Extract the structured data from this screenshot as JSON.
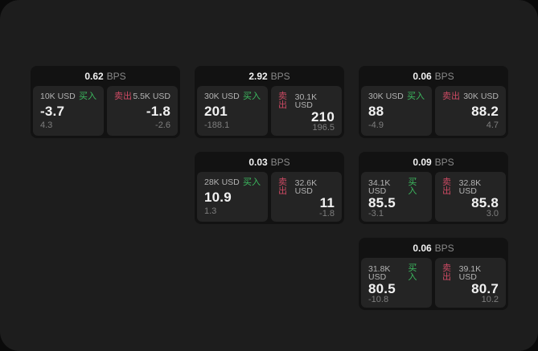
{
  "labels": {
    "bps": "BPS",
    "buy": "买入",
    "sell": "卖出"
  },
  "colors": {
    "backdrop": "#0a0a0a",
    "panel_bg": "#1d1d1d",
    "card_bg": "#121212",
    "tile_bg": "#242424",
    "buy_green": "#3cba5f",
    "sell_red": "#cd4a63"
  },
  "cards": [
    {
      "bps": "0.62",
      "buy": {
        "amount": "10K USD",
        "value": "-3.7",
        "delta": "4.3"
      },
      "sell": {
        "amount": "5.5K USD",
        "value": "-1.8",
        "delta": "-2.6"
      }
    },
    {
      "bps": "2.92",
      "buy": {
        "amount": "30K USD",
        "value": "201",
        "delta": "-188.1"
      },
      "sell": {
        "amount": "30.1K USD",
        "value": "210",
        "delta": "196.5"
      }
    },
    {
      "bps": "0.06",
      "buy": {
        "amount": "30K USD",
        "value": "88",
        "delta": "-4.9"
      },
      "sell": {
        "amount": "30K USD",
        "value": "88.2",
        "delta": "4.7"
      }
    },
    {
      "bps": "0.03",
      "buy": {
        "amount": "28K USD",
        "value": "10.9",
        "delta": "1.3"
      },
      "sell": {
        "amount": "32.6K USD",
        "value": "11",
        "delta": "-1.8"
      }
    },
    {
      "bps": "0.09",
      "buy": {
        "amount": "34.1K USD",
        "value": "85.5",
        "delta": "-3.1"
      },
      "sell": {
        "amount": "32.8K USD",
        "value": "85.8",
        "delta": "3.0"
      }
    },
    {
      "bps": "0.06",
      "buy": {
        "amount": "31.8K USD",
        "value": "80.5",
        "delta": "-10.8"
      },
      "sell": {
        "amount": "39.1K USD",
        "value": "80.7",
        "delta": "10.2"
      }
    }
  ]
}
